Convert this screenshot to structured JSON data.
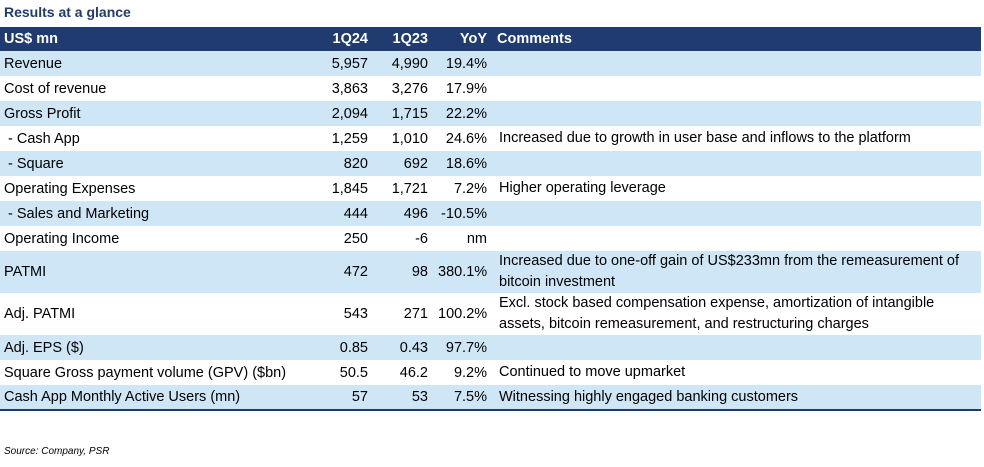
{
  "title": "Results at a glance",
  "columns": [
    "US$ mn",
    "1Q24",
    "1Q23",
    "YoY",
    "Comments"
  ],
  "rows": [
    {
      "label": "Revenue",
      "q24": "5,957",
      "q23": "4,990",
      "yoy": "19.4%",
      "comment": ""
    },
    {
      "label": "Cost of revenue",
      "q24": "3,863",
      "q23": "3,276",
      "yoy": "17.9%",
      "comment": ""
    },
    {
      "label": "Gross Profit",
      "q24": "2,094",
      "q23": "1,715",
      "yoy": "22.2%",
      "comment": ""
    },
    {
      "label": " - Cash App",
      "q24": "1,259",
      "q23": "1,010",
      "yoy": "24.6%",
      "comment": "Increased due to growth in user base and inflows to the platform"
    },
    {
      "label": " - Square",
      "q24": "820",
      "q23": "692",
      "yoy": "18.6%",
      "comment": ""
    },
    {
      "label": "Operating Expenses",
      "q24": "1,845",
      "q23": "1,721",
      "yoy": "7.2%",
      "comment": "Higher operating leverage"
    },
    {
      "label": " - Sales and Marketing",
      "q24": "444",
      "q23": "496",
      "yoy": "-10.5%",
      "comment": ""
    },
    {
      "label": "Operating Income",
      "q24": "250",
      "q23": "-6",
      "yoy": "nm",
      "comment": ""
    },
    {
      "label": "PATMI",
      "q24": "472",
      "q23": "98",
      "yoy": "380.1%",
      "comment": "Increased due to one-off gain of US$233mn from the remeasurement of bitcoin investment"
    },
    {
      "label": "Adj. PATMI",
      "q24": "543",
      "q23": "271",
      "yoy": "100.2%",
      "comment": "Excl. stock based compensation expense, amortization of intangible assets, bitcoin remeasurement, and restructuring charges"
    },
    {
      "label": "Adj. EPS ($)",
      "q24": "0.85",
      "q23": "0.43",
      "yoy": "97.7%",
      "comment": ""
    },
    {
      "label": "Square Gross payment volume (GPV) ($bn)",
      "q24": "50.5",
      "q23": "46.2",
      "yoy": "9.2%",
      "comment": "Continued to move upmarket"
    },
    {
      "label": "Cash App Monthly Active Users (mn)",
      "q24": "57",
      "q23": "53",
      "yoy": "7.5%",
      "comment": "Witnessing highly engaged banking customers"
    }
  ],
  "source": "Source: Company, PSR",
  "colors": {
    "header": "#1f3b6f",
    "stripe": "#cfe6f7"
  }
}
